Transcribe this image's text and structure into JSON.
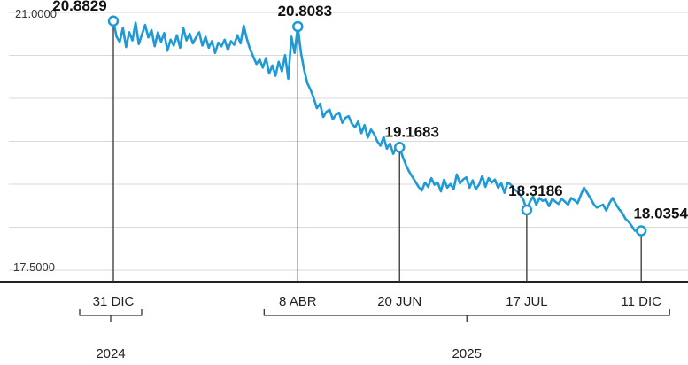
{
  "chart_data": {
    "type": "line",
    "ylim": [
      17.5,
      21.0
    ],
    "y_ticks": [
      "21.0000",
      "17.5000"
    ],
    "grid": true,
    "line_color": "#1f9ad6",
    "series_values": [
      20.8829,
      20.67,
      20.6,
      20.79,
      20.53,
      20.73,
      20.62,
      20.86,
      20.57,
      20.7,
      20.83,
      20.66,
      20.76,
      20.54,
      20.73,
      20.6,
      20.72,
      20.48,
      20.63,
      20.55,
      20.69,
      20.52,
      20.79,
      20.62,
      20.71,
      20.58,
      20.66,
      20.73,
      20.55,
      20.67,
      20.52,
      20.61,
      20.45,
      20.59,
      20.54,
      20.63,
      20.49,
      20.61,
      20.56,
      20.69,
      20.58,
      20.82,
      20.64,
      20.5,
      20.4,
      20.3,
      20.36,
      20.25,
      20.38,
      20.17,
      20.28,
      20.14,
      20.33,
      20.2,
      20.42,
      20.1,
      20.67,
      20.45,
      20.8083,
      20.45,
      20.22,
      20.04,
      19.95,
      19.84,
      19.7,
      19.76,
      19.58,
      19.65,
      19.68,
      19.55,
      19.61,
      19.64,
      19.5,
      19.57,
      19.59,
      19.49,
      19.44,
      19.52,
      19.36,
      19.47,
      19.3,
      19.41,
      19.35,
      19.25,
      19.19,
      19.31,
      19.15,
      19.22,
      19.08,
      19.17,
      19.1683,
      19.04,
      18.93,
      18.84,
      18.77,
      18.7,
      18.63,
      18.58,
      18.69,
      18.63,
      18.75,
      18.66,
      18.69,
      18.57,
      18.73,
      18.62,
      18.67,
      18.6,
      18.8,
      18.68,
      18.73,
      18.76,
      18.62,
      18.72,
      18.6,
      18.66,
      18.78,
      18.63,
      18.75,
      18.69,
      18.73,
      18.62,
      18.68,
      18.55,
      18.69,
      18.66,
      18.6,
      18.57,
      18.52,
      18.45,
      18.3186,
      18.43,
      18.5,
      18.39,
      18.48,
      18.44,
      18.46,
      18.37,
      18.47,
      18.43,
      18.4,
      18.47,
      18.43,
      18.39,
      18.48,
      18.45,
      18.41,
      18.52,
      18.62,
      18.55,
      18.48,
      18.4,
      18.35,
      18.37,
      18.39,
      18.31,
      18.41,
      18.48,
      18.4,
      18.33,
      18.28,
      18.2,
      18.16,
      18.1,
      18.0354
    ],
    "annotations": [
      {
        "index": 0,
        "value": 20.8829,
        "label": "20.8829",
        "date": "31 DIC"
      },
      {
        "index": 58,
        "value": 20.8083,
        "label": "20.8083",
        "date": "8 ABR"
      },
      {
        "index": 90,
        "value": 19.1683,
        "label": "19.1683",
        "date": "20 JUN"
      },
      {
        "index": 130,
        "value": 18.3186,
        "label": "18.3186",
        "date": "17 JUL"
      },
      {
        "index": 166,
        "value": 18.0354,
        "label": "18.0354",
        "date": "11 DIC"
      }
    ],
    "years": [
      {
        "label": "2024",
        "from": 0,
        "to": 0
      },
      {
        "label": "2025",
        "from": 1,
        "to": 4
      }
    ]
  }
}
